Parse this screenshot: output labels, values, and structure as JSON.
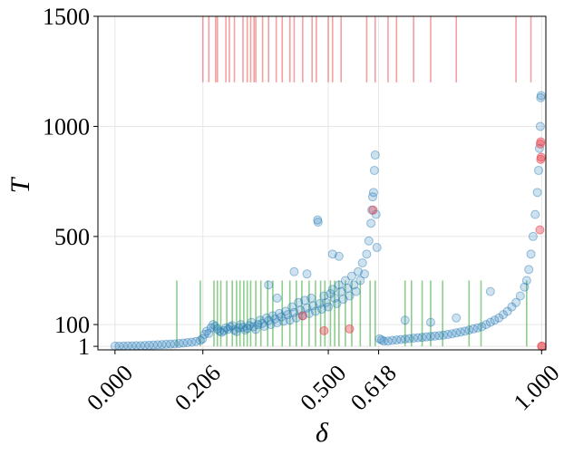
{
  "chart_data": {
    "type": "scatter",
    "title": "",
    "xlabel": "δ",
    "ylabel": "T",
    "xlim": [
      -0.04,
      1.01
    ],
    "ylim": [
      -15,
      1500
    ],
    "grid": true,
    "xticks": [
      {
        "value": 0.0,
        "label": "0.000"
      },
      {
        "value": 0.206,
        "label": "0.206"
      },
      {
        "value": 0.5,
        "label": "0.500"
      },
      {
        "value": 0.618,
        "label": "0.618"
      },
      {
        "value": 1.0,
        "label": "1.000"
      }
    ],
    "yticks": [
      {
        "value": 1,
        "label": "1"
      },
      {
        "value": 100,
        "label": "100"
      },
      {
        "value": 500,
        "label": "500"
      },
      {
        "value": 1000,
        "label": "1000"
      },
      {
        "value": 1500,
        "label": "1500"
      }
    ],
    "colors": {
      "main_points": "#1f77b4",
      "highlight_points": "#e8434f",
      "red_rug": "#f08080",
      "green_rug": "#5cb85c",
      "grid": "#e6e6e6"
    },
    "red_rug": {
      "y_range": [
        1200,
        1500
      ],
      "x": [
        0.206,
        0.22,
        0.236,
        0.24,
        0.26,
        0.268,
        0.28,
        0.3,
        0.31,
        0.318,
        0.326,
        0.33,
        0.346,
        0.36,
        0.378,
        0.392,
        0.41,
        0.42,
        0.44,
        0.462,
        0.472,
        0.5,
        0.51,
        0.53,
        0.59,
        0.61,
        0.64,
        0.66,
        0.7,
        0.74,
        0.8,
        0.94,
        0.975
      ]
    },
    "green_rug": {
      "y_range": [
        1,
        300
      ],
      "x": [
        0.145,
        0.2,
        0.232,
        0.24,
        0.248,
        0.262,
        0.275,
        0.285,
        0.293,
        0.302,
        0.31,
        0.318,
        0.33,
        0.342,
        0.358,
        0.37,
        0.392,
        0.41,
        0.425,
        0.438,
        0.455,
        0.47,
        0.482,
        0.492,
        0.505,
        0.515,
        0.525,
        0.54,
        0.555,
        0.575,
        0.598,
        0.61,
        0.68,
        0.695,
        0.72,
        0.74,
        0.768,
        0.83,
        0.858,
        0.965
      ]
    },
    "series": [
      {
        "name": "",
        "points": [
          [
            0.0,
            2
          ],
          [
            0.01,
            2
          ],
          [
            0.02,
            2
          ],
          [
            0.03,
            3
          ],
          [
            0.04,
            3
          ],
          [
            0.05,
            4
          ],
          [
            0.06,
            4
          ],
          [
            0.07,
            5
          ],
          [
            0.08,
            6
          ],
          [
            0.09,
            7
          ],
          [
            0.1,
            8
          ],
          [
            0.11,
            9
          ],
          [
            0.12,
            10
          ],
          [
            0.13,
            11
          ],
          [
            0.14,
            12
          ],
          [
            0.15,
            14
          ],
          [
            0.16,
            16
          ],
          [
            0.17,
            18
          ],
          [
            0.18,
            20
          ],
          [
            0.19,
            23
          ],
          [
            0.2,
            28
          ],
          [
            0.205,
            35
          ],
          [
            0.21,
            55
          ],
          [
            0.215,
            70
          ],
          [
            0.22,
            60
          ],
          [
            0.225,
            85
          ],
          [
            0.23,
            100
          ],
          [
            0.235,
            92
          ],
          [
            0.24,
            80
          ],
          [
            0.245,
            70
          ],
          [
            0.25,
            65
          ],
          [
            0.255,
            72
          ],
          [
            0.26,
            85
          ],
          [
            0.265,
            78
          ],
          [
            0.27,
            90
          ],
          [
            0.275,
            95
          ],
          [
            0.28,
            75
          ],
          [
            0.285,
            68
          ],
          [
            0.29,
            85
          ],
          [
            0.295,
            100
          ],
          [
            0.3,
            88
          ],
          [
            0.305,
            75
          ],
          [
            0.31,
            82
          ],
          [
            0.315,
            95
          ],
          [
            0.32,
            110
          ],
          [
            0.325,
            90
          ],
          [
            0.33,
            78
          ],
          [
            0.335,
            100
          ],
          [
            0.34,
            120
          ],
          [
            0.345,
            105
          ],
          [
            0.35,
            92
          ],
          [
            0.355,
            130
          ],
          [
            0.36,
            118
          ],
          [
            0.365,
            100
          ],
          [
            0.37,
            140
          ],
          [
            0.375,
            125
          ],
          [
            0.38,
            108
          ],
          [
            0.385,
            150
          ],
          [
            0.39,
            135
          ],
          [
            0.395,
            115
          ],
          [
            0.4,
            160
          ],
          [
            0.405,
            145
          ],
          [
            0.41,
            120
          ],
          [
            0.415,
            180
          ],
          [
            0.42,
            155
          ],
          [
            0.425,
            130
          ],
          [
            0.43,
            200
          ],
          [
            0.435,
            165
          ],
          [
            0.44,
            140
          ],
          [
            0.445,
            210
          ],
          [
            0.45,
            175
          ],
          [
            0.455,
            150
          ],
          [
            0.46,
            220
          ],
          [
            0.465,
            185
          ],
          [
            0.47,
            160
          ],
          [
            0.475,
            575
          ],
          [
            0.476,
            565
          ],
          [
            0.48,
            195
          ],
          [
            0.485,
            170
          ],
          [
            0.49,
            230
          ],
          [
            0.495,
            200
          ],
          [
            0.5,
            180
          ],
          [
            0.505,
            240
          ],
          [
            0.51,
            260
          ],
          [
            0.515,
            220
          ],
          [
            0.52,
            195
          ],
          [
            0.525,
            280
          ],
          [
            0.53,
            250
          ],
          [
            0.535,
            215
          ],
          [
            0.54,
            300
          ],
          [
            0.545,
            265
          ],
          [
            0.55,
            230
          ],
          [
            0.555,
            320
          ],
          [
            0.56,
            280
          ],
          [
            0.565,
            250
          ],
          [
            0.57,
            340
          ],
          [
            0.575,
            300
          ],
          [
            0.58,
            380
          ],
          [
            0.585,
            330
          ],
          [
            0.59,
            420
          ],
          [
            0.595,
            480
          ],
          [
            0.6,
            560
          ],
          [
            0.602,
            620
          ],
          [
            0.604,
            680
          ],
          [
            0.606,
            700
          ],
          [
            0.608,
            800
          ],
          [
            0.61,
            870
          ],
          [
            0.612,
            600
          ],
          [
            0.614,
            450
          ],
          [
            0.62,
            35
          ],
          [
            0.625,
            30
          ],
          [
            0.63,
            25
          ],
          [
            0.64,
            25
          ],
          [
            0.65,
            28
          ],
          [
            0.66,
            30
          ],
          [
            0.67,
            32
          ],
          [
            0.68,
            34
          ],
          [
            0.69,
            36
          ],
          [
            0.7,
            38
          ],
          [
            0.71,
            40
          ],
          [
            0.72,
            42
          ],
          [
            0.73,
            44
          ],
          [
            0.74,
            46
          ],
          [
            0.75,
            48
          ],
          [
            0.76,
            50
          ],
          [
            0.77,
            52
          ],
          [
            0.78,
            55
          ],
          [
            0.79,
            58
          ],
          [
            0.8,
            62
          ],
          [
            0.81,
            66
          ],
          [
            0.82,
            70
          ],
          [
            0.83,
            75
          ],
          [
            0.84,
            80
          ],
          [
            0.85,
            85
          ],
          [
            0.86,
            90
          ],
          [
            0.87,
            100
          ],
          [
            0.88,
            110
          ],
          [
            0.89,
            120
          ],
          [
            0.9,
            130
          ],
          [
            0.91,
            145
          ],
          [
            0.92,
            160
          ],
          [
            0.93,
            180
          ],
          [
            0.94,
            200
          ],
          [
            0.95,
            230
          ],
          [
            0.96,
            270
          ],
          [
            0.965,
            300
          ],
          [
            0.97,
            350
          ],
          [
            0.975,
            420
          ],
          [
            0.98,
            500
          ],
          [
            0.985,
            600
          ],
          [
            0.99,
            700
          ],
          [
            0.993,
            800
          ],
          [
            0.995,
            900
          ],
          [
            0.997,
            1000
          ],
          [
            0.998,
            1130
          ],
          [
            0.999,
            1140
          ],
          [
            0.51,
            420
          ],
          [
            0.525,
            410
          ],
          [
            0.45,
            330
          ],
          [
            0.42,
            340
          ],
          [
            0.38,
            220
          ],
          [
            0.36,
            280
          ],
          [
            0.68,
            120
          ],
          [
            0.74,
            110
          ],
          [
            0.8,
            130
          ],
          [
            0.88,
            250
          ]
        ]
      },
      {
        "name": "",
        "points": [
          [
            0.44,
            140
          ],
          [
            0.49,
            72
          ],
          [
            0.55,
            80
          ],
          [
            0.605,
            620
          ],
          [
            0.998,
            930
          ],
          [
            0.997,
            920
          ],
          [
            0.999,
            860
          ],
          [
            0.998,
            850
          ],
          [
            0.996,
            530
          ],
          [
            1.0,
            2
          ],
          [
            1.001,
            1
          ]
        ]
      }
    ]
  }
}
